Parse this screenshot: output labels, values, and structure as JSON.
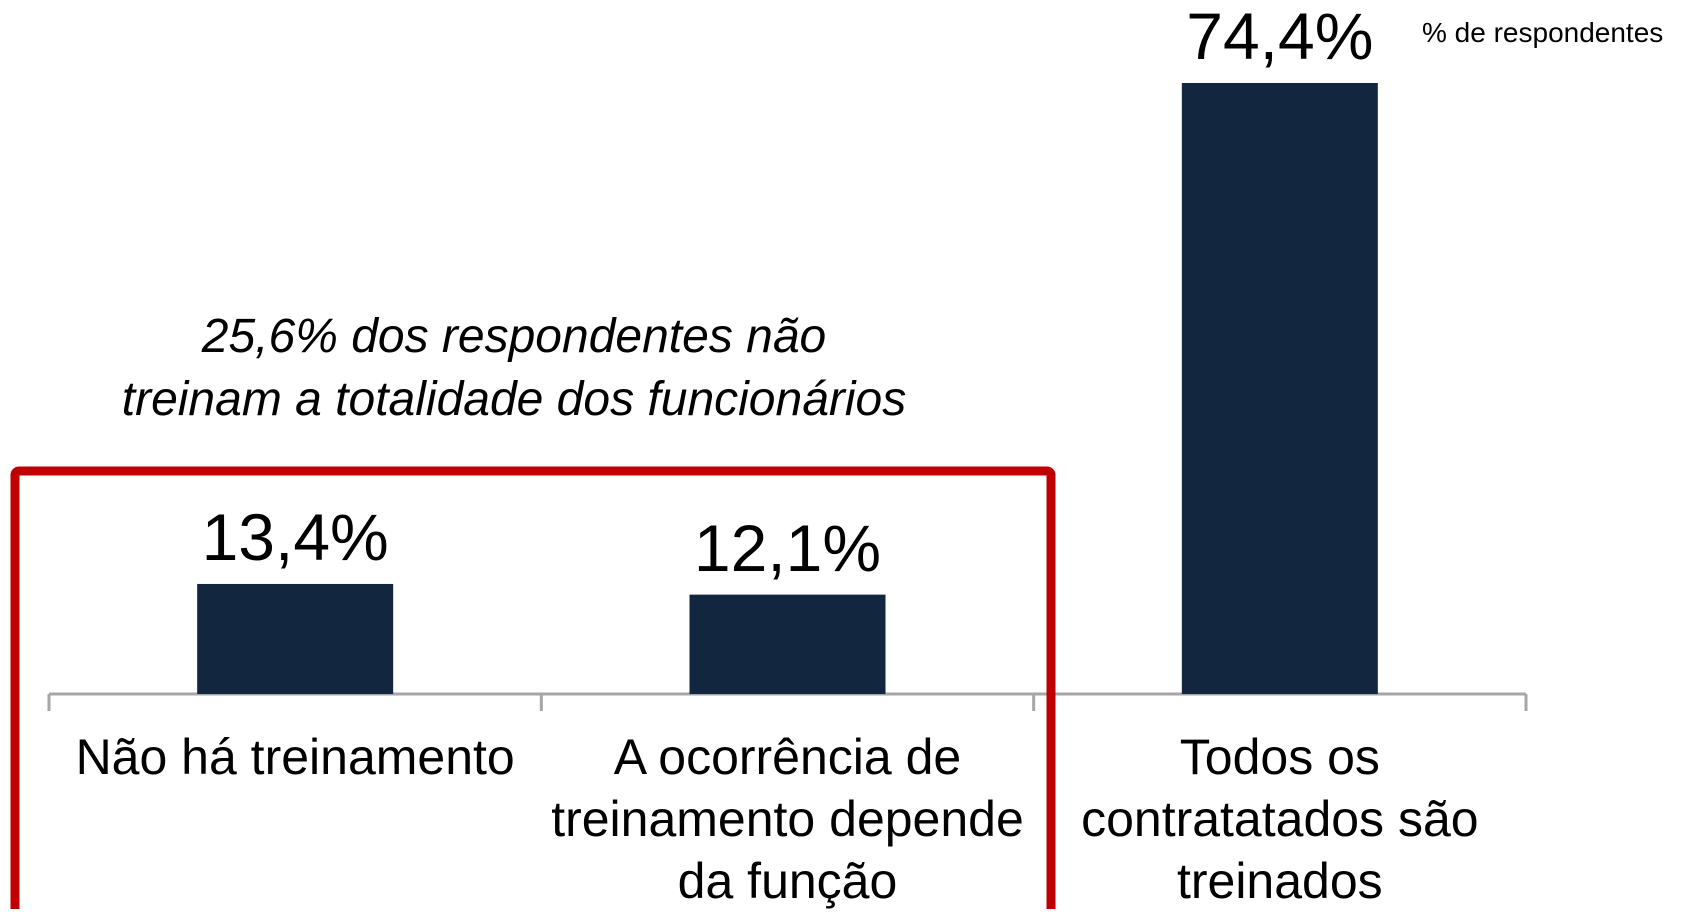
{
  "chart_data": {
    "type": "bar",
    "categories": [
      "Não há treinamento",
      "A ocorrência de treinamento depende da função",
      "Todos os contratatados são treinados"
    ],
    "values": [
      13.4,
      12.1,
      74.4
    ],
    "value_labels": [
      "13,4%",
      "12,1%",
      "74,4%"
    ],
    "color": "#12263f",
    "unit_label": "% de respondentes",
    "annotation": "25,6% dos respondentes não\ntreinam a totalidade dos funcionários",
    "highlight_color": "#c00000"
  }
}
